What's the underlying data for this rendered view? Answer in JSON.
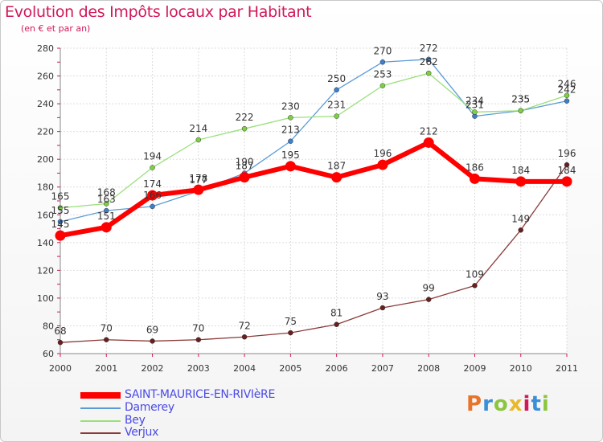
{
  "title": "Evolution des Impôts locaux par Habitant",
  "subtitle": "(en € et par an)",
  "logo": {
    "letters": [
      "P",
      "r",
      "o",
      "x",
      "i",
      "t",
      "i"
    ],
    "colors": [
      "#e8732a",
      "#3a8fd8",
      "#8cc63f",
      "#e8b92a",
      "#d1185a",
      "#3a8fd8",
      "#8cc63f"
    ]
  },
  "chart_data": {
    "type": "line",
    "x": [
      "2000",
      "2001",
      "2002",
      "2003",
      "2004",
      "2005",
      "2006",
      "2007",
      "2008",
      "2009",
      "2010",
      "2011"
    ],
    "ylim": [
      60,
      280
    ],
    "yticks": [
      60,
      80,
      100,
      120,
      140,
      160,
      180,
      200,
      220,
      240,
      260,
      280
    ],
    "grid": true,
    "legend_position": "bottom-left",
    "series": [
      {
        "name": "SAINT-MAURICE-EN-RIVIèRE",
        "color": "#ff0000",
        "marker_color": "#ff0000",
        "width": 6,
        "values": [
          145,
          151,
          174,
          178,
          187,
          195,
          187,
          196,
          212,
          186,
          184,
          184
        ],
        "labels": [
          "145",
          "151",
          "174",
          "178",
          "187",
          "195",
          "187",
          "196",
          "212",
          "186",
          "184",
          "184"
        ]
      },
      {
        "name": "Damerey",
        "color": "#5b9bd5",
        "marker_color": "#3a7fd0",
        "width": 1.3,
        "values": [
          155,
          163,
          166,
          177,
          190,
          213,
          250,
          270,
          272,
          231,
          235,
          242
        ],
        "labels": [
          "155",
          "163",
          "166",
          "177",
          "190",
          "213",
          "250",
          "270",
          "272",
          "231",
          "235",
          "242"
        ]
      },
      {
        "name": "Bey",
        "color": "#99e07a",
        "marker_color": "#7cd23e",
        "width": 1.3,
        "values": [
          165,
          168,
          194,
          214,
          222,
          230,
          231,
          253,
          262,
          234,
          235,
          246
        ],
        "labels": [
          "165",
          "168",
          "194",
          "214",
          "222",
          "230",
          "231",
          "253",
          "262",
          "234",
          "235",
          "246"
        ]
      },
      {
        "name": "Verjux",
        "color": "#8b3a3a",
        "marker_color": "#6b1e1e",
        "width": 1.3,
        "values": [
          68,
          70,
          69,
          70,
          72,
          75,
          81,
          93,
          99,
          109,
          149,
          196
        ],
        "labels": [
          "68",
          "70",
          "69",
          "70",
          "72",
          "75",
          "81",
          "93",
          "99",
          "109",
          "149",
          "196"
        ]
      }
    ]
  }
}
